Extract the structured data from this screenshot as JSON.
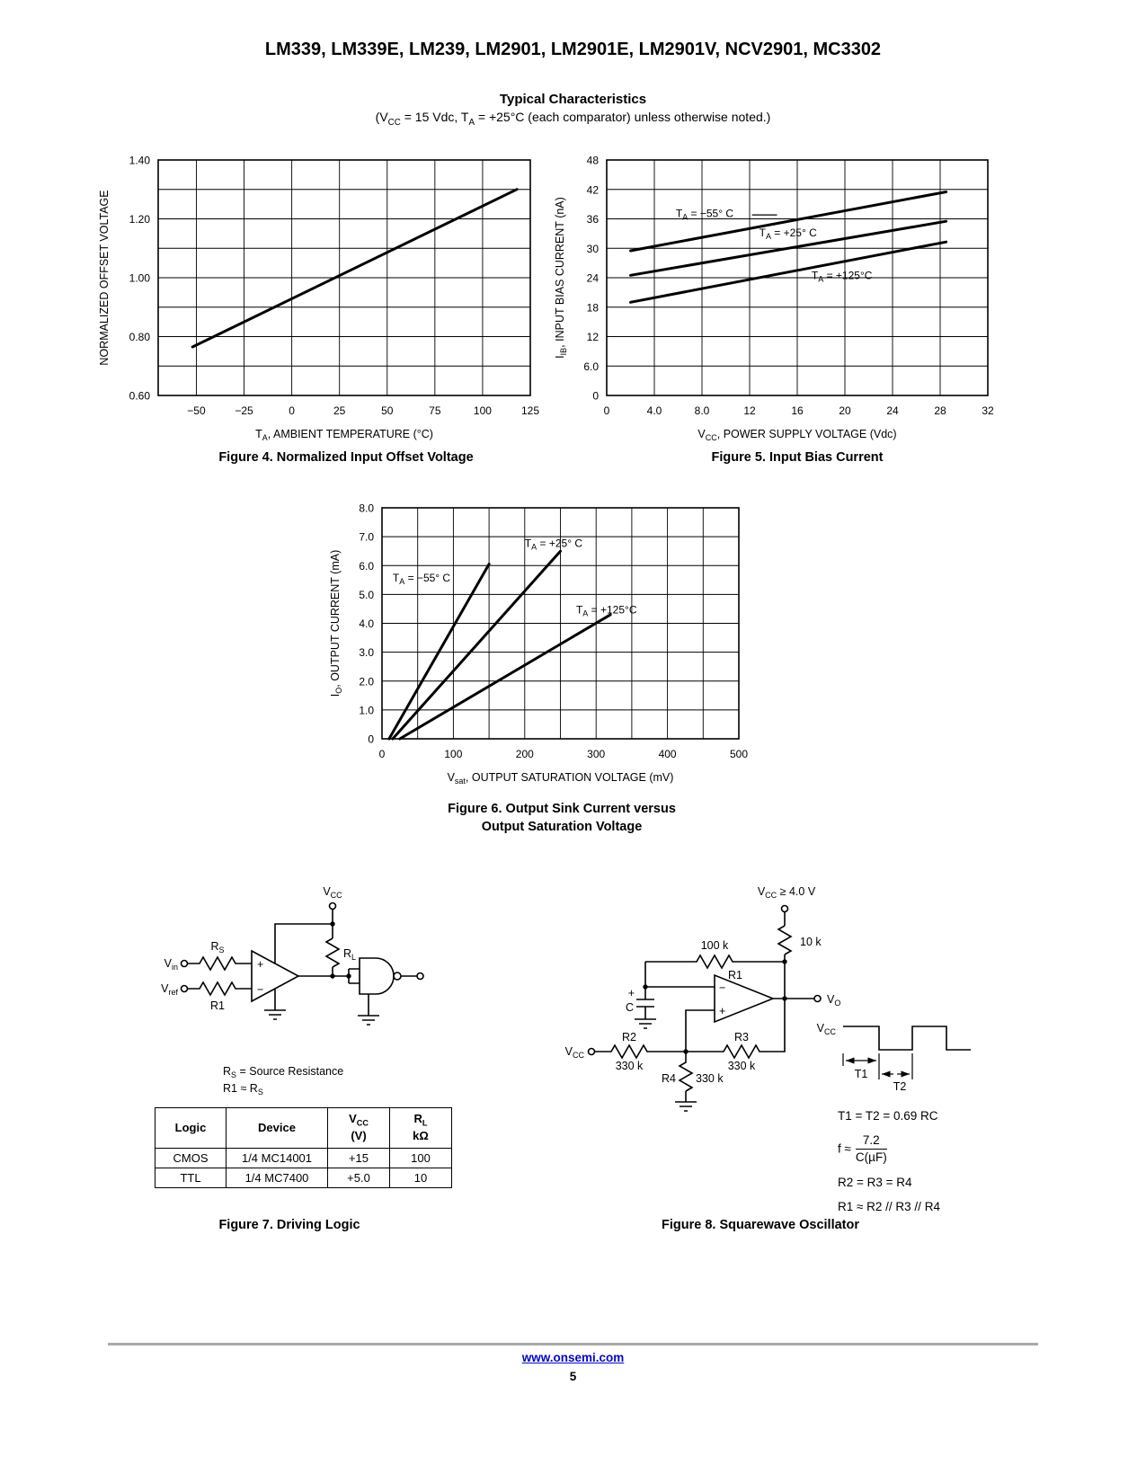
{
  "page": {
    "title": "LM339, LM339E, LM239, LM2901, LM2901E, LM2901V, NCV2901, MC3302",
    "section": {
      "title": "Typical Characteristics",
      "cond_parts": [
        "(V",
        "CC",
        " = 15 Vdc, T",
        "A",
        " = +25°C (each comparator) unless otherwise noted.)"
      ]
    },
    "footer": {
      "link": "www.onsemi.com",
      "page_number": "5"
    }
  },
  "figures": {
    "fig4_caption": "Figure 4. Normalized Input Offset Voltage",
    "fig5_caption": "Figure 5. Input Bias Current",
    "fig6_caption_line1": "Figure 6. Output Sink Current versus",
    "fig6_caption_line2": "Output Saturation Voltage",
    "fig7_caption": "Figure 7. Driving Logic",
    "fig8_caption": "Figure 8. Squarewave Oscillator"
  },
  "chart_data": [
    {
      "id": "fig4",
      "type": "line",
      "title": "Figure 4. Normalized Input Offset Voltage",
      "xlabel": {
        "pre": "T",
        "sub": "A",
        "post": ", AMBIENT TEMPERATURE (°C)"
      },
      "ylabel": {
        "pre": "NORMALIZED OFFSET VOLTAGE",
        "sub": "",
        "post": ""
      },
      "xlim": [
        -70,
        125
      ],
      "ylim": [
        0.6,
        1.4
      ],
      "xticks": [
        -50,
        -25,
        0,
        25,
        50,
        75,
        100,
        125
      ],
      "xtick_labels": [
        "−50",
        "−25",
        "0",
        "25",
        "50",
        "75",
        "100",
        "125"
      ],
      "yticks": [
        0.6,
        0.8,
        1.0,
        1.2,
        1.4
      ],
      "ytick_labels": [
        "0.60",
        "0.80",
        "1.00",
        "1.20",
        "1.40"
      ],
      "xgrid": [
        -50,
        -25,
        0,
        25,
        50,
        75,
        100
      ],
      "ygrid": [
        0.7,
        0.8,
        0.9,
        1.0,
        1.1,
        1.2,
        1.3
      ],
      "grid": true,
      "legend": "none",
      "series": [
        {
          "name": "normalized_offset_voltage",
          "points": [
            [
              -52,
              0.765
            ],
            [
              118,
              1.3
            ]
          ]
        }
      ],
      "annotations": []
    },
    {
      "id": "fig5",
      "type": "line",
      "title": "Figure 5. Input Bias Current",
      "xlabel": {
        "pre": "V",
        "sub": "CC",
        "post": ", POWER SUPPLY VOLTAGE (Vdc)"
      },
      "ylabel": {
        "pre": "I",
        "sub": "IB",
        "post": ", INPUT BIAS CURRENT (nA)"
      },
      "xlim": [
        0,
        32
      ],
      "ylim": [
        0,
        48
      ],
      "xticks": [
        0,
        4,
        8,
        12,
        16,
        20,
        24,
        28,
        32
      ],
      "xtick_labels": [
        "0",
        "4.0",
        "8.0",
        "12",
        "16",
        "20",
        "24",
        "28",
        "32"
      ],
      "yticks": [
        0,
        6,
        12,
        18,
        24,
        30,
        36,
        42,
        48
      ],
      "ytick_labels": [
        "0",
        "6.0",
        "12",
        "18",
        "24",
        "30",
        "36",
        "42",
        "48"
      ],
      "xgrid": [
        4,
        8,
        12,
        16,
        20,
        24,
        28
      ],
      "ygrid": [
        6,
        12,
        18,
        24,
        30,
        36,
        42
      ],
      "grid": true,
      "legend": "in-plot annotations",
      "series": [
        {
          "name": "TA = −55°C",
          "points": [
            [
              2,
              29.5
            ],
            [
              28.5,
              41.5
            ]
          ]
        },
        {
          "name": "TA = +25°C",
          "points": [
            [
              2,
              24.5
            ],
            [
              28.5,
              35.5
            ]
          ]
        },
        {
          "name": "TA = +125°C",
          "points": [
            [
              2,
              19.0
            ],
            [
              28.5,
              31.3
            ]
          ]
        }
      ],
      "annotations": [
        {
          "pre": "T",
          "sub": "A",
          "post": " = −55° C",
          "x": 5.8,
          "y": 36.4,
          "leader": [
            12.2,
            36.8,
            14.3,
            36.8
          ]
        },
        {
          "pre": "T",
          "sub": "A",
          "post": " = +25° C",
          "x": 12.8,
          "y": 32.4
        },
        {
          "pre": "T",
          "sub": "A",
          "post": " = +125°C",
          "x": 17.2,
          "y": 23.7
        }
      ]
    },
    {
      "id": "fig6",
      "type": "line",
      "title": "Figure 6. Output Sink Current versus Output Saturation Voltage",
      "xlabel": {
        "pre": "V",
        "sub": "sat",
        "post": ", OUTPUT SATURATION VOLTAGE (mV)"
      },
      "ylabel": {
        "pre": "I",
        "sub": "O",
        "post": ", OUTPUT CURRENT (mA)"
      },
      "xlim": [
        0,
        500
      ],
      "ylim": [
        0,
        8
      ],
      "xticks": [
        0,
        100,
        200,
        300,
        400,
        500
      ],
      "xtick_labels": [
        "0",
        "100",
        "200",
        "300",
        "400",
        "500"
      ],
      "yticks": [
        0,
        1,
        2,
        3,
        4,
        5,
        6,
        7,
        8
      ],
      "ytick_labels": [
        "0",
        "1.0",
        "2.0",
        "3.0",
        "4.0",
        "5.0",
        "6.0",
        "7.0",
        "8.0"
      ],
      "xgrid": [
        50,
        100,
        150,
        200,
        250,
        300,
        350,
        400,
        450
      ],
      "ygrid": [
        1,
        2,
        3,
        4,
        5,
        6,
        7
      ],
      "grid": true,
      "legend": "in-plot annotations",
      "series": [
        {
          "name": "TA = −55°C",
          "points": [
            [
              10,
              0
            ],
            [
              150,
              6.05
            ]
          ]
        },
        {
          "name": "TA = +25°C",
          "points": [
            [
              15,
              0
            ],
            [
              250,
              6.5
            ]
          ]
        },
        {
          "name": "TA = +125°C",
          "points": [
            [
              25,
              0
            ],
            [
              320,
              4.3
            ]
          ]
        }
      ],
      "annotations": [
        {
          "pre": "T",
          "sub": "A",
          "post": " = −55° C",
          "x": 15,
          "y": 5.45
        },
        {
          "pre": "T",
          "sub": "A",
          "post": " = +25° C",
          "x": 200,
          "y": 6.65
        },
        {
          "pre": "T",
          "sub": "A",
          "post": " = +125°C",
          "x": 272,
          "y": 4.35
        }
      ]
    }
  ],
  "fig7": {
    "labels": {
      "vcc_pre": "V",
      "vcc_sub": "CC",
      "vin_pre": "V",
      "vin_sub": "in",
      "vref_pre": "V",
      "vref_sub": "ref",
      "rs_pre": "R",
      "rs_sub": "S",
      "r1": "R1",
      "rl_pre": "R",
      "rl_sub": "L",
      "plus": "+",
      "minus": "−",
      "note1_pre": "R",
      "note1_sub": "S",
      "note1_post": " = Source Resistance",
      "note2_pre": "R1 ≈ R",
      "note2_sub": "S"
    },
    "table": {
      "h_logic": "Logic",
      "h_device": "Device",
      "h_vcc_pre": "V",
      "h_vcc_sub": "CC",
      "h_vcc_line2": "(V)",
      "h_rl_pre": "R",
      "h_rl_sub": "L",
      "h_rl_line2": "kΩ",
      "rows": [
        [
          "CMOS",
          "1/4 MC14001",
          "+15",
          "100"
        ],
        [
          "TTL",
          "1/4 MC7400",
          "+5.0",
          "10"
        ]
      ]
    }
  },
  "fig8": {
    "labels": {
      "vcc_top_pre": "V",
      "vcc_top_sub": "CC",
      "vcc_top_post": " ≥ 4.0 V",
      "r10k": "10 k",
      "r100k": "100 k",
      "r1": "R1",
      "cap_plus": "+",
      "cap": "C",
      "vcc_pre": "V",
      "vcc_sub": "CC",
      "r2": "R2",
      "r2v": "330 k",
      "r3": "R3",
      "r3v": "330 k",
      "r4": "R4",
      "r4v": "330 k",
      "vo_pre": "V",
      "vo_sub": "O",
      "wave_vcc_pre": "V",
      "wave_vcc_sub": "CC",
      "t1": "T1",
      "t2": "T2",
      "minus": "−",
      "plus": "+"
    },
    "equations": {
      "eq1": "T1 = T2 = 0.69 RC",
      "eq2_pre": "f ≈",
      "eq2_num": "7.2",
      "eq2_den": "C(µF)",
      "eq3": "R2 = R3 = R4",
      "eq4": "R1 ≈ R2 // R3 // R4"
    }
  }
}
